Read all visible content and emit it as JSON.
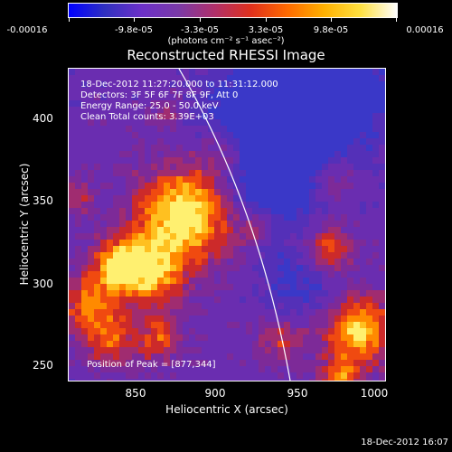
{
  "colorbar": {
    "stops": [
      "#0000ff",
      "#3030c0",
      "#6c30c8",
      "#7a3aa8",
      "#b0306a",
      "#e0301c",
      "#ff6a00",
      "#ffb000",
      "#ffe040",
      "#ffffff"
    ],
    "ticks": [
      "-0.00016",
      "-9.8e-05",
      "-3.3e-05",
      "3.3e-05",
      "9.8e-05",
      "0.00016"
    ],
    "unit": "(photons cm⁻² s⁻¹ asec⁻²)"
  },
  "plot": {
    "title": "Reconstructed RHESSI Image",
    "xlabel": "Heliocentric X (arcsec)",
    "ylabel": "Heliocentric Y (arcsec)",
    "xlim": [
      812,
      1000
    ],
    "ylim": [
      242,
      418
    ],
    "xticks": [
      "850",
      "900",
      "950",
      "1000"
    ],
    "yticks": [
      "400",
      "350",
      "300",
      "250"
    ],
    "annotations": {
      "time_range": "18-Dec-2012 11:27:20.000 to 11:31:12.000",
      "detectors": "Detectors: 3F 5F 6F 7F 8F 9F, Att 0",
      "energy": "Energy Range: 25.0 - 50.0 keV",
      "clean": "Clean      Total counts: 3.39E+03",
      "peak": "Position of Peak = [877,344]"
    }
  },
  "footer": "18-Dec-2012 16:07"
}
